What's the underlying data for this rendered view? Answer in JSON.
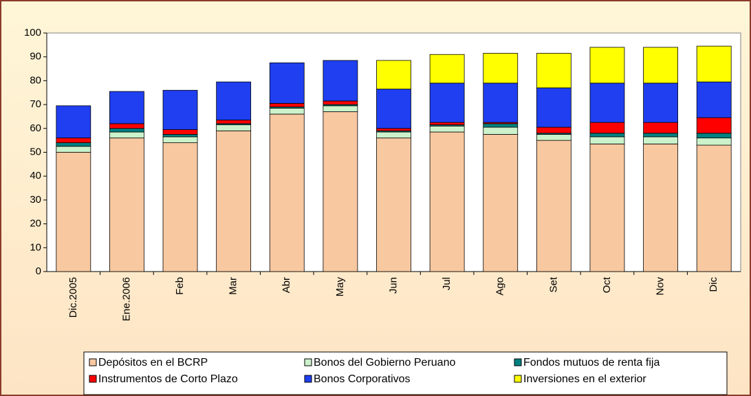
{
  "chart_data": {
    "type": "stacked_bar",
    "categories": [
      "Dic.2005",
      "Ene.2006",
      "Feb",
      "Mar",
      "Abr",
      "May",
      "Jun",
      "Jul",
      "Ago",
      "Set",
      "Oct",
      "Nov",
      "Dic"
    ],
    "series": [
      {
        "name": "Depósitos en el BCRP",
        "color": "#f8c8a0",
        "values": [
          50,
          56,
          54,
          59,
          66,
          67,
          56,
          58.5,
          57.5,
          55,
          53.5,
          53.5,
          53
        ]
      },
      {
        "name": "Bonos del Gobierno Peruano",
        "color": "#ccf2cc",
        "values": [
          2.5,
          2.5,
          2.5,
          2.5,
          2.5,
          2.5,
          2.5,
          2.5,
          3,
          2.5,
          3,
          3,
          3
        ]
      },
      {
        "name": "Fondos mutuos de renta fija",
        "color": "#008080",
        "values": [
          1.5,
          1.5,
          1,
          0.5,
          0.5,
          0.5,
          0.5,
          0.5,
          1.5,
          0.5,
          1.5,
          1.5,
          2
        ]
      },
      {
        "name": "Instrumentos de Corto Plazo",
        "color": "#ff0000",
        "values": [
          2,
          2,
          2,
          1.5,
          1.5,
          1.5,
          1,
          1,
          0.5,
          2.5,
          4.5,
          4.5,
          6.5
        ]
      },
      {
        "name": "Bonos Corporativos",
        "color": "#1f3ff0",
        "values": [
          13.5,
          13.5,
          16.5,
          16,
          17,
          17,
          16.5,
          16.5,
          16.5,
          16.5,
          16.5,
          16.5,
          15
        ]
      },
      {
        "name": "Inversiones en el exterior",
        "color": "#ffff00",
        "values": [
          0,
          0,
          0,
          0,
          0,
          0,
          12,
          12,
          12.5,
          14.5,
          15,
          15,
          15
        ]
      }
    ],
    "ylim": [
      0,
      100
    ],
    "yticks": [
      0,
      10,
      20,
      30,
      40,
      50,
      60,
      70,
      80,
      90,
      100
    ],
    "grid": false
  }
}
